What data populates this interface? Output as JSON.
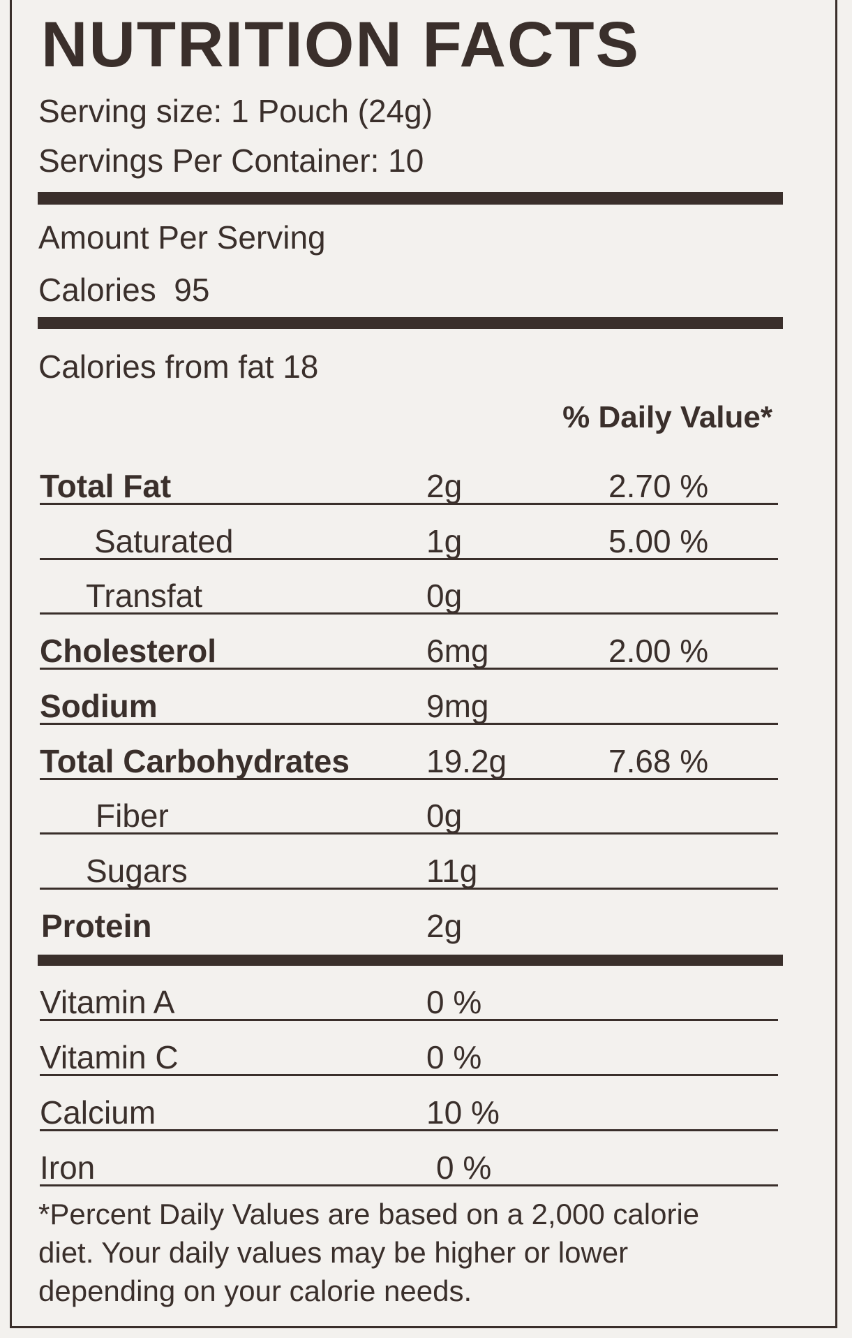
{
  "title": "NUTRITION FACTS",
  "serving_size": "Serving size: 1 Pouch (24g)",
  "servings_per_container": "Servings Per Container: 10",
  "amount_per_serving": "Amount Per Serving",
  "calories": "Calories  95",
  "calories_from_fat": "Calories from fat 18",
  "daily_value_header": "% Daily Value*",
  "nutrients": [
    {
      "name": "Total Fat",
      "amount": "2g",
      "daily_value": "2.70 %"
    },
    {
      "name": "Saturated",
      "amount": "1g",
      "daily_value": "5.00 %"
    },
    {
      "name": "Transfat",
      "amount": "0g"
    },
    {
      "name": "Cholesterol",
      "amount": "6mg",
      "daily_value": "2.00 %"
    },
    {
      "name": "Sodium",
      "amount": "9mg"
    },
    {
      "name": "Total Carbohydrates",
      "amount": "19.2g",
      "daily_value": "7.68 %"
    },
    {
      "name": "Fiber",
      "amount": "0g"
    },
    {
      "name": "Sugars",
      "amount": "11g"
    },
    {
      "name": "Protein",
      "amount": "2g"
    }
  ],
  "vitamins": [
    {
      "name": "Vitamin A",
      "amount": "0 %"
    },
    {
      "name": "Vitamin C",
      "amount": "0 %"
    },
    {
      "name": "Calcium",
      "amount": "10 %"
    },
    {
      "name": "Iron",
      "amount": "0 %"
    }
  ],
  "footnote": [
    "*Percent Daily Values are based on a 2,000 calorie",
    "diet. Your daily values may be higher or lower",
    "depending on your calorie needs."
  ]
}
